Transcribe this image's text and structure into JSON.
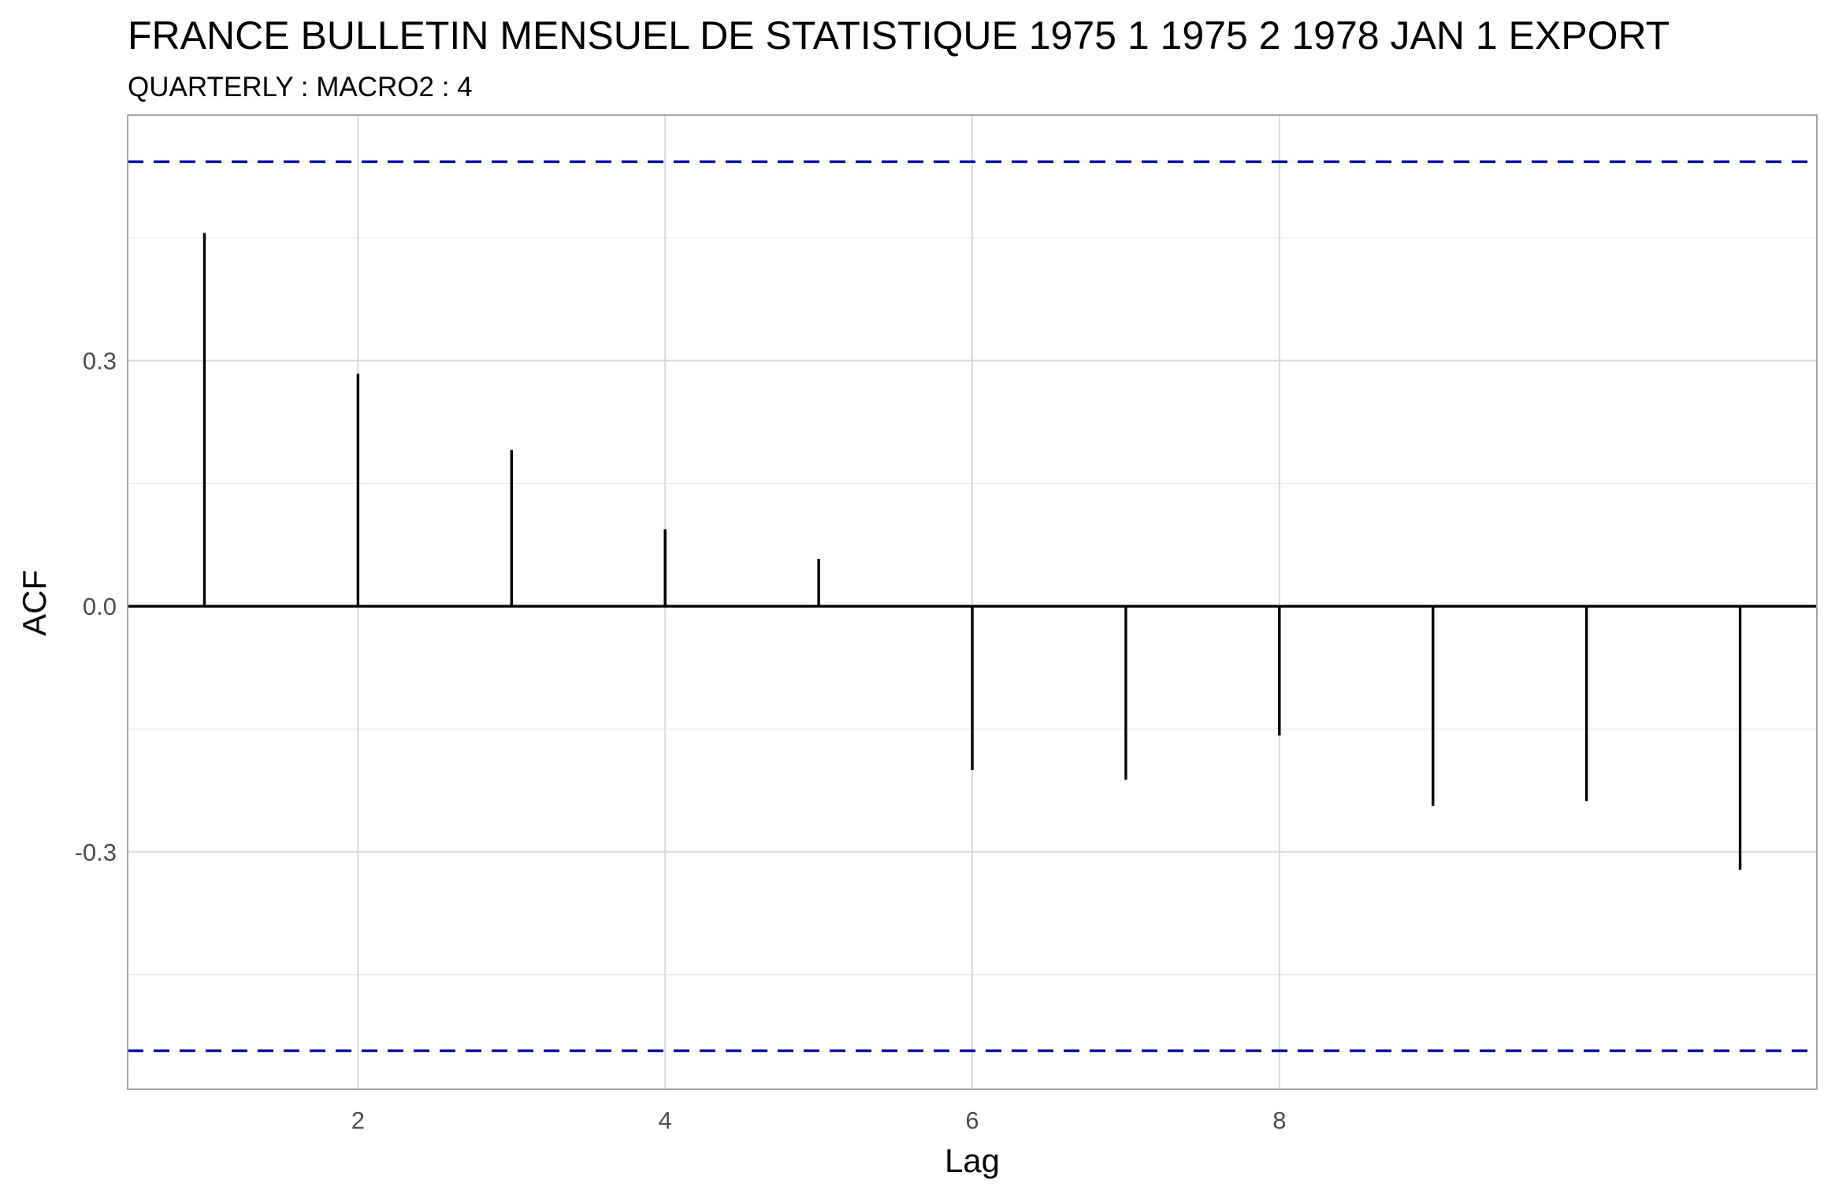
{
  "title": "FRANCE BULLETIN MENSUEL DE STATISTIQUE 1975 1 1975 2 1978 JAN 1 EXPORT",
  "subtitle": "QUARTERLY : MACRO2 : 4",
  "chart_data": {
    "type": "bar",
    "xlabel": "Lag",
    "ylabel": "ACF",
    "xlim": [
      0.5,
      11.5
    ],
    "ylim": [
      -0.59,
      0.6
    ],
    "x_ticks": [
      2,
      4,
      6,
      8
    ],
    "x_tick_labels": [
      "2",
      "4",
      "6",
      "8"
    ],
    "y_ticks": [
      -0.3,
      0.0,
      0.3
    ],
    "y_tick_labels": [
      "-0.3",
      "0.0",
      "0.3"
    ],
    "grid": true,
    "lags": [
      1,
      2,
      3,
      4,
      5,
      6,
      7,
      8,
      9,
      10,
      11
    ],
    "acf": [
      0.456,
      0.284,
      0.191,
      0.094,
      0.058,
      -0.2,
      -0.212,
      -0.158,
      -0.244,
      -0.238,
      -0.322
    ],
    "confidence_bounds": [
      0.543,
      -0.543
    ],
    "colors": {
      "bars": "#000000",
      "confidence": "#0000cc",
      "grid": "#d9d9d9"
    }
  }
}
